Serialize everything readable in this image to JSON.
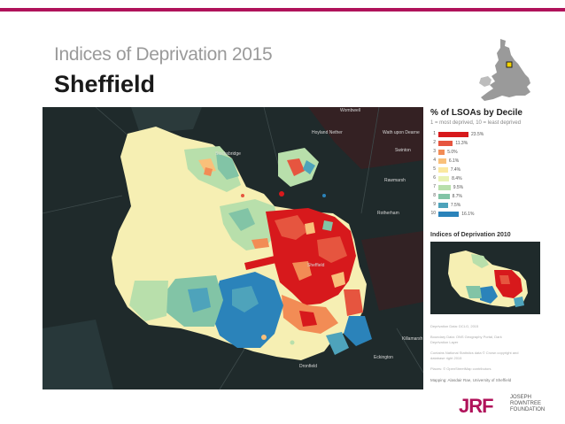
{
  "header": {
    "subtitle": "Indices of Deprivation 2015",
    "title": "Sheffield"
  },
  "map": {
    "places": [
      "Wombwell",
      "Hoyland Nether",
      "Wath upon Dearne",
      "Stocksbridge",
      "Swinton",
      "Rawmarsh",
      "Rotherham",
      "Sheffield",
      "Dronfield",
      "Eckington",
      "Killamarsh"
    ],
    "colors": {
      "background": "#1f2a2b",
      "decile_1": "#d7191c",
      "decile_2": "#e6553f",
      "decile_3": "#f28c55",
      "decile_4": "#f9c07a",
      "decile_5": "#fbe8a0",
      "decile_6": "#e8f2b4",
      "decile_7": "#b8dfab",
      "decile_8": "#82c4a6",
      "decile_9": "#4ea3bb",
      "decile_10": "#2b83ba"
    }
  },
  "legend": {
    "title": "% of LSOAs by Decile",
    "subtitle": "1 = most deprived, 10 = least deprived",
    "rows": [
      {
        "decile": "1",
        "percent": 23.5,
        "label": "23.5%"
      },
      {
        "decile": "2",
        "percent": 11.3,
        "label": "11.3%"
      },
      {
        "decile": "3",
        "percent": 5.0,
        "label": "5.0%"
      },
      {
        "decile": "4",
        "percent": 6.1,
        "label": "6.1%"
      },
      {
        "decile": "5",
        "percent": 7.4,
        "label": "7.4%"
      },
      {
        "decile": "6",
        "percent": 8.4,
        "label": "8.4%"
      },
      {
        "decile": "7",
        "percent": 9.5,
        "label": "9.5%"
      },
      {
        "decile": "8",
        "percent": 8.7,
        "label": "8.7%"
      },
      {
        "decile": "9",
        "percent": 7.5,
        "label": "7.5%"
      },
      {
        "decile": "10",
        "percent": 16.1,
        "label": "16.1%"
      }
    ]
  },
  "inset": {
    "title": "Indices of Deprivation 2010"
  },
  "notes": [
    "Deprivation Data: DCLG, 2015",
    "Boundary Data: ONS Geography Portal, Dark",
    "Deprivation Layer",
    "Contains National Statistics data © Crown copyright and",
    "database right 2015",
    "Places: © OpenStreetMap contributors"
  ],
  "credit": "Mapping: Alasdair Rae, University of Sheffield",
  "logo": {
    "mark": "JRF",
    "lines": [
      "JOSEPH",
      "ROWNTREE",
      "FOUNDATION"
    ]
  }
}
